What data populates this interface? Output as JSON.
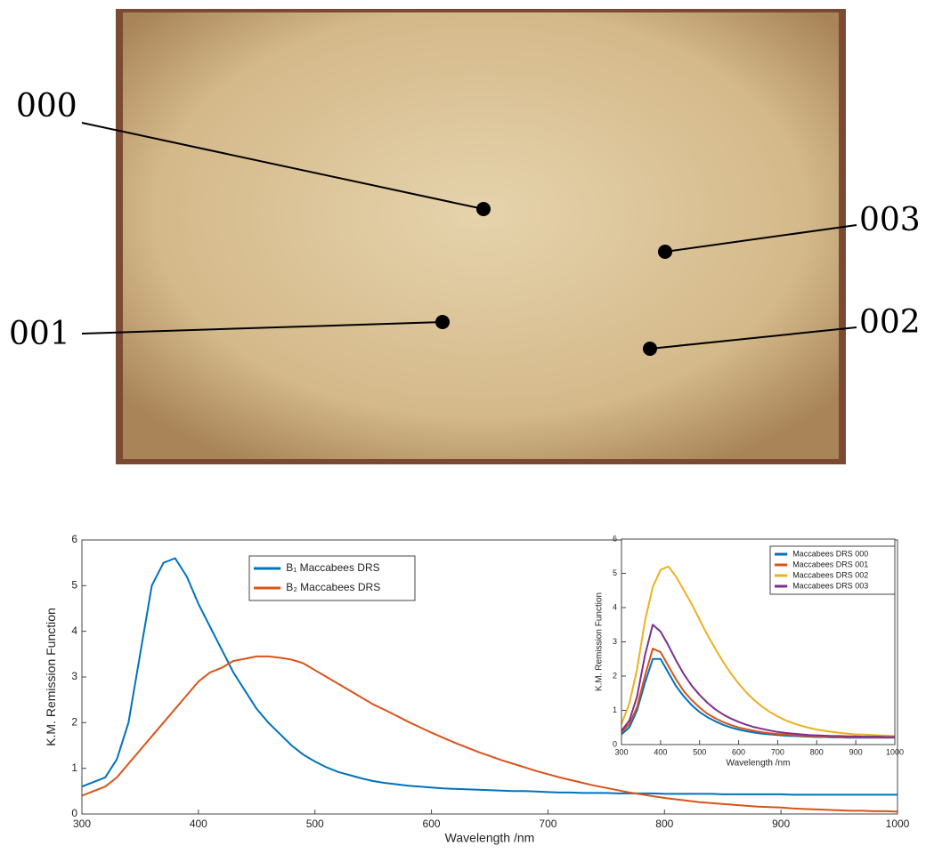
{
  "image": {
    "labels": [
      "000",
      "001",
      "002",
      "003"
    ]
  },
  "chart_data": [
    {
      "type": "line",
      "xlabel": "Wavelength /nm",
      "ylabel": "K.M. Remission Function",
      "x": [
        300,
        310,
        320,
        330,
        340,
        350,
        360,
        370,
        380,
        390,
        400,
        410,
        420,
        430,
        440,
        450,
        460,
        470,
        480,
        490,
        500,
        510,
        520,
        530,
        540,
        550,
        560,
        570,
        580,
        590,
        600,
        610,
        620,
        630,
        640,
        650,
        660,
        670,
        680,
        690,
        700,
        710,
        720,
        730,
        740,
        750,
        760,
        770,
        780,
        790,
        800,
        810,
        820,
        830,
        840,
        850,
        860,
        870,
        880,
        890,
        900,
        910,
        920,
        930,
        940,
        950,
        960,
        970,
        980,
        990,
        1000
      ],
      "series": [
        {
          "name": "B₁ Maccabees DRS",
          "color": "#0072bd",
          "values": [
            0.6,
            0.7,
            0.8,
            1.2,
            2.0,
            3.5,
            5.0,
            5.5,
            5.6,
            5.2,
            4.6,
            4.1,
            3.6,
            3.1,
            2.7,
            2.3,
            2.0,
            1.75,
            1.5,
            1.3,
            1.15,
            1.02,
            0.92,
            0.85,
            0.78,
            0.72,
            0.68,
            0.65,
            0.62,
            0.6,
            0.58,
            0.56,
            0.55,
            0.54,
            0.53,
            0.52,
            0.51,
            0.5,
            0.5,
            0.49,
            0.48,
            0.47,
            0.47,
            0.46,
            0.46,
            0.46,
            0.45,
            0.45,
            0.45,
            0.45,
            0.44,
            0.44,
            0.44,
            0.44,
            0.44,
            0.43,
            0.43,
            0.43,
            0.43,
            0.43,
            0.43,
            0.42,
            0.42,
            0.42,
            0.42,
            0.42,
            0.42,
            0.42,
            0.42,
            0.42,
            0.42
          ]
        },
        {
          "name": "B₂ Maccabees DRS",
          "color": "#d95319",
          "values": [
            0.4,
            0.5,
            0.6,
            0.8,
            1.1,
            1.4,
            1.7,
            2.0,
            2.3,
            2.6,
            2.9,
            3.1,
            3.2,
            3.35,
            3.4,
            3.45,
            3.45,
            3.42,
            3.38,
            3.3,
            3.15,
            3.0,
            2.85,
            2.7,
            2.55,
            2.4,
            2.28,
            2.15,
            2.02,
            1.9,
            1.78,
            1.67,
            1.56,
            1.46,
            1.36,
            1.27,
            1.18,
            1.1,
            1.02,
            0.94,
            0.87,
            0.8,
            0.74,
            0.68,
            0.62,
            0.57,
            0.52,
            0.47,
            0.43,
            0.39,
            0.35,
            0.32,
            0.29,
            0.26,
            0.24,
            0.22,
            0.2,
            0.18,
            0.16,
            0.15,
            0.14,
            0.12,
            0.11,
            0.1,
            0.09,
            0.08,
            0.07,
            0.07,
            0.06,
            0.06,
            0.05
          ]
        }
      ],
      "xlim": [
        300,
        1000
      ],
      "xticks": [
        300,
        400,
        500,
        600,
        700,
        800,
        900,
        1000
      ],
      "ylim": [
        0,
        6
      ],
      "yticks": [
        0,
        1,
        2,
        3,
        4,
        5,
        6
      ]
    },
    {
      "type": "line",
      "xlabel": "Wavelength /nm",
      "ylabel": "K.M. Remission Function",
      "x": [
        300,
        320,
        340,
        360,
        380,
        400,
        420,
        440,
        460,
        480,
        500,
        520,
        540,
        560,
        580,
        600,
        620,
        640,
        660,
        680,
        700,
        720,
        740,
        760,
        780,
        800,
        820,
        840,
        860,
        880,
        900,
        920,
        940,
        960,
        980,
        1000
      ],
      "series": [
        {
          "name": "Maccabees DRS 000",
          "color": "#0072bd",
          "values": [
            0.3,
            0.5,
            1.0,
            1.8,
            2.5,
            2.5,
            2.1,
            1.7,
            1.4,
            1.15,
            0.95,
            0.8,
            0.68,
            0.58,
            0.5,
            0.44,
            0.39,
            0.35,
            0.32,
            0.3,
            0.28,
            0.26,
            0.25,
            0.24,
            0.23,
            0.22,
            0.22,
            0.21,
            0.21,
            0.2,
            0.2,
            0.2,
            0.2,
            0.2,
            0.2,
            0.2
          ]
        },
        {
          "name": "Maccabees DRS 001",
          "color": "#d95319",
          "values": [
            0.35,
            0.6,
            1.1,
            2.0,
            2.8,
            2.7,
            2.3,
            1.9,
            1.55,
            1.3,
            1.08,
            0.9,
            0.77,
            0.66,
            0.57,
            0.5,
            0.45,
            0.4,
            0.36,
            0.33,
            0.31,
            0.29,
            0.27,
            0.26,
            0.25,
            0.24,
            0.23,
            0.23,
            0.22,
            0.22,
            0.22,
            0.22,
            0.21,
            0.21,
            0.21,
            0.21
          ]
        },
        {
          "name": "Maccabees DRS 002",
          "color": "#edb120",
          "values": [
            0.6,
            1.2,
            2.2,
            3.6,
            4.6,
            5.1,
            5.2,
            4.9,
            4.5,
            4.1,
            3.65,
            3.2,
            2.8,
            2.42,
            2.08,
            1.78,
            1.52,
            1.3,
            1.11,
            0.95,
            0.82,
            0.71,
            0.62,
            0.55,
            0.49,
            0.44,
            0.4,
            0.37,
            0.34,
            0.32,
            0.3,
            0.29,
            0.28,
            0.27,
            0.26,
            0.25
          ]
        },
        {
          "name": "Maccabees DRS 003",
          "color": "#7e2f8e",
          "values": [
            0.4,
            0.7,
            1.4,
            2.6,
            3.5,
            3.3,
            2.9,
            2.45,
            2.05,
            1.72,
            1.45,
            1.22,
            1.03,
            0.88,
            0.76,
            0.66,
            0.58,
            0.51,
            0.46,
            0.41,
            0.37,
            0.34,
            0.32,
            0.3,
            0.28,
            0.27,
            0.26,
            0.25,
            0.25,
            0.24,
            0.24,
            0.23,
            0.23,
            0.23,
            0.22,
            0.22
          ]
        }
      ],
      "xlim": [
        300,
        1000
      ],
      "xticks": [
        300,
        400,
        500,
        600,
        700,
        800,
        900,
        1000
      ],
      "ylim": [
        0,
        6
      ],
      "yticks": [
        0,
        1,
        2,
        3,
        4,
        5,
        6
      ]
    }
  ]
}
